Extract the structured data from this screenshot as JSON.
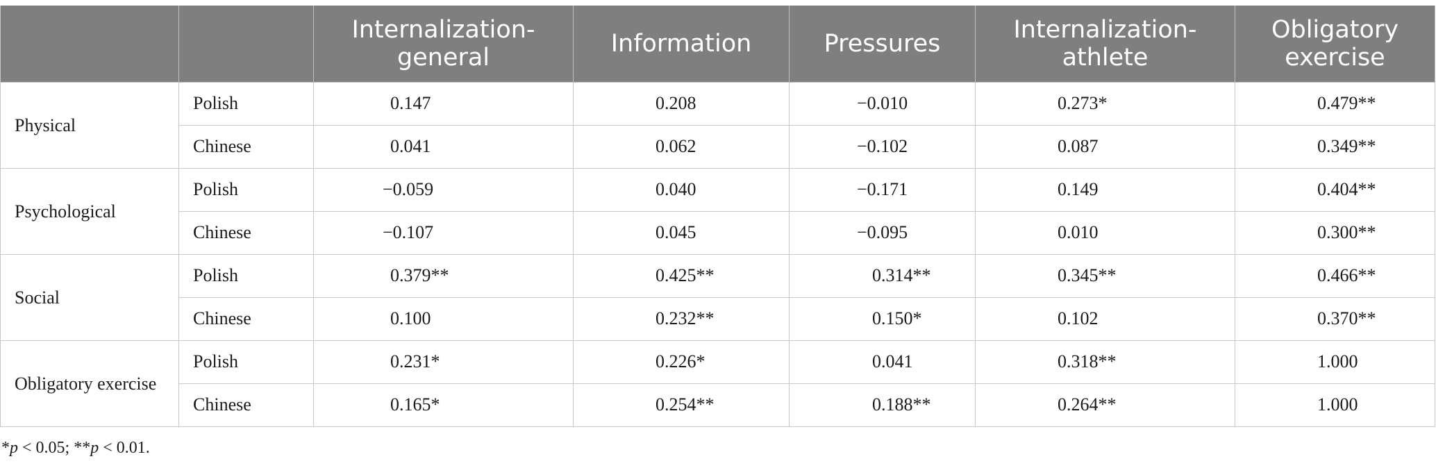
{
  "table": {
    "headers": [
      "",
      "",
      "Internalization-general",
      "Information",
      "Pressures",
      "Internalization-athlete",
      "Obligatory exercise"
    ],
    "header_lines": [
      [
        "",
        ""
      ],
      [
        "",
        ""
      ],
      [
        "Internalization-",
        "general"
      ],
      [
        "Information",
        ""
      ],
      [
        "Pressures",
        ""
      ],
      [
        "Internalization-",
        "athlete"
      ],
      [
        "Obligatory",
        "exercise"
      ]
    ],
    "groups": [
      {
        "label": "Physical",
        "rows": [
          {
            "lang": "Polish",
            "values": [
              "0.147",
              "0.208",
              "−0.010",
              "0.273*",
              "0.479**"
            ]
          },
          {
            "lang": "Chinese",
            "values": [
              "0.041",
              "0.062",
              "−0.102",
              "0.087",
              "0.349**"
            ]
          }
        ]
      },
      {
        "label": "Psychological",
        "rows": [
          {
            "lang": "Polish",
            "values": [
              "−0.059",
              "0.040",
              "−0.171",
              "0.149",
              "0.404**"
            ]
          },
          {
            "lang": "Chinese",
            "values": [
              "−0.107",
              "0.045",
              "−0.095",
              "0.010",
              "0.300**"
            ]
          }
        ]
      },
      {
        "label": "Social",
        "rows": [
          {
            "lang": "Polish",
            "values": [
              "0.379**",
              "0.425**",
              "0.314**",
              "0.345**",
              "0.466**"
            ]
          },
          {
            "lang": "Chinese",
            "values": [
              "0.100",
              "0.232**",
              "0.150*",
              "0.102",
              "0.370**"
            ]
          }
        ]
      },
      {
        "label": "Obligatory exercise",
        "rows": [
          {
            "lang": "Polish",
            "values": [
              "0.231*",
              "0.226*",
              "0.041",
              "0.318**",
              "1.000"
            ]
          },
          {
            "lang": "Chinese",
            "values": [
              "0.165*",
              "0.254**",
              "0.188**",
              "0.264**",
              "1.000"
            ]
          }
        ]
      }
    ]
  },
  "footnote": {
    "p1_prefix": "*",
    "p1_symbol": "p",
    "p1_rest": " < 0.05; **",
    "p2_symbol": "p",
    "p2_rest": " < 0.01."
  },
  "colors": {
    "header_bg": "#7f7f7f",
    "header_text": "#ffffff",
    "grid": "#c8c8c8"
  }
}
